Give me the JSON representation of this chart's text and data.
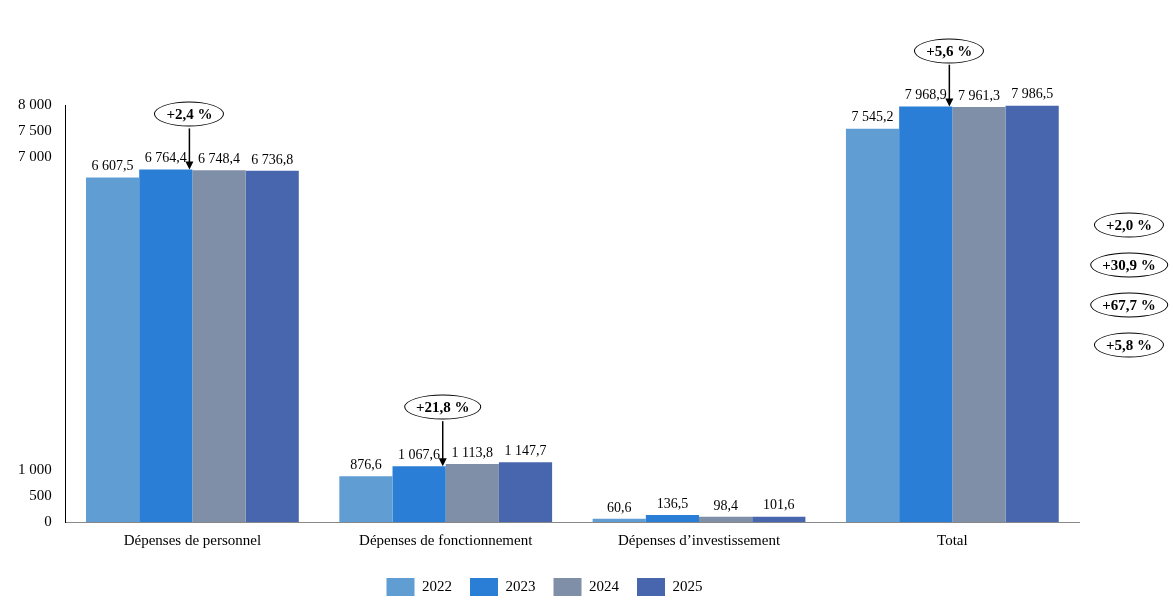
{
  "chart_data": {
    "type": "bar",
    "categories": [
      "Dépenses de personnel",
      "Dépenses de fonctionnement",
      "Dépenses d’investissement",
      "Total"
    ],
    "series": [
      {
        "name": "2022",
        "color": "#5f9dd3",
        "values": [
          6607.5,
          876.6,
          60.6,
          7545.2
        ],
        "value_labels": [
          "6 607,5",
          "876,6",
          "60,6",
          "7 545,2"
        ]
      },
      {
        "name": "2023",
        "color": "#2b7ed6",
        "values": [
          6764.4,
          1067.6,
          136.5,
          7968.9
        ],
        "value_labels": [
          "6 764,4",
          "1 067,6",
          "136,5",
          "7 968,9"
        ]
      },
      {
        "name": "2024",
        "color": "#7f8fa8",
        "values": [
          6748.4,
          1113.8,
          98.4,
          7961.3
        ],
        "value_labels": [
          "6 748,4",
          "1 113,8",
          "98,4",
          "7 961,3"
        ]
      },
      {
        "name": "2025",
        "color": "#4866ae",
        "values": [
          6736.8,
          1147.7,
          101.6,
          7986.5
        ],
        "value_labels": [
          "6 736,8",
          "1 147,7",
          "101,6",
          "7 986,5"
        ]
      }
    ],
    "ylim": [
      0,
      8000
    ],
    "yticks": [
      0,
      500,
      {
        "value": 1000,
        "label": "1 000"
      },
      {
        "value": 7000,
        "label": "7 000"
      },
      {
        "value": 7500,
        "label": "7 500"
      },
      {
        "value": 8000,
        "label": "8 000"
      }
    ],
    "grid": false,
    "legend": "bottom",
    "annotations": [
      {
        "text": "+2,4 %",
        "x": "Dépenses de personnel",
        "y": 6764.4
      },
      "+2,0 %",
      {
        "text": "+21,8 %",
        "x": "Dépenses de fonctionnement",
        "y": 1067.6
      },
      "+30,9 %",
      "+67,7 %",
      {
        "text": "+5,6 %",
        "x": "Total",
        "y": 7968.9
      },
      "+5,8 %"
    ]
  }
}
